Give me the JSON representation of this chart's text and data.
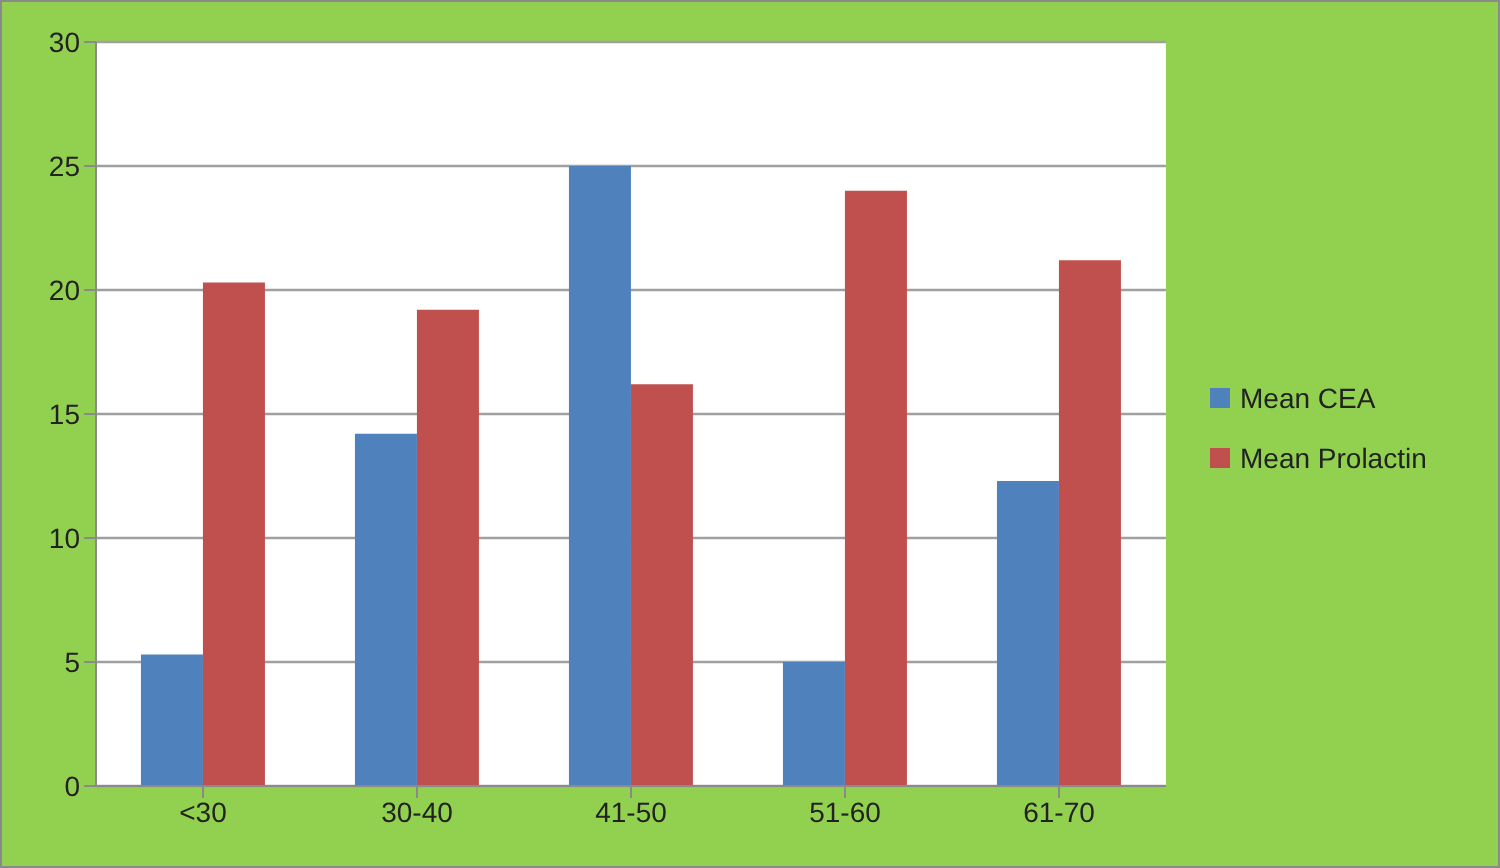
{
  "chart_data": {
    "type": "bar",
    "categories": [
      "<30",
      "30-40",
      "41-50",
      "51-60",
      "61-70"
    ],
    "series": [
      {
        "name": "Mean CEA",
        "color": "#4f81bd",
        "values": [
          5.3,
          14.2,
          25.0,
          5.0,
          12.3
        ]
      },
      {
        "name": "Mean Prolactin",
        "color": "#c0504d",
        "values": [
          20.3,
          19.2,
          16.2,
          24.0,
          21.2
        ]
      }
    ],
    "ylim": [
      0,
      30
    ],
    "yticks": [
      0,
      5,
      10,
      15,
      20,
      25,
      30
    ],
    "grid": "y",
    "legend": "right"
  }
}
